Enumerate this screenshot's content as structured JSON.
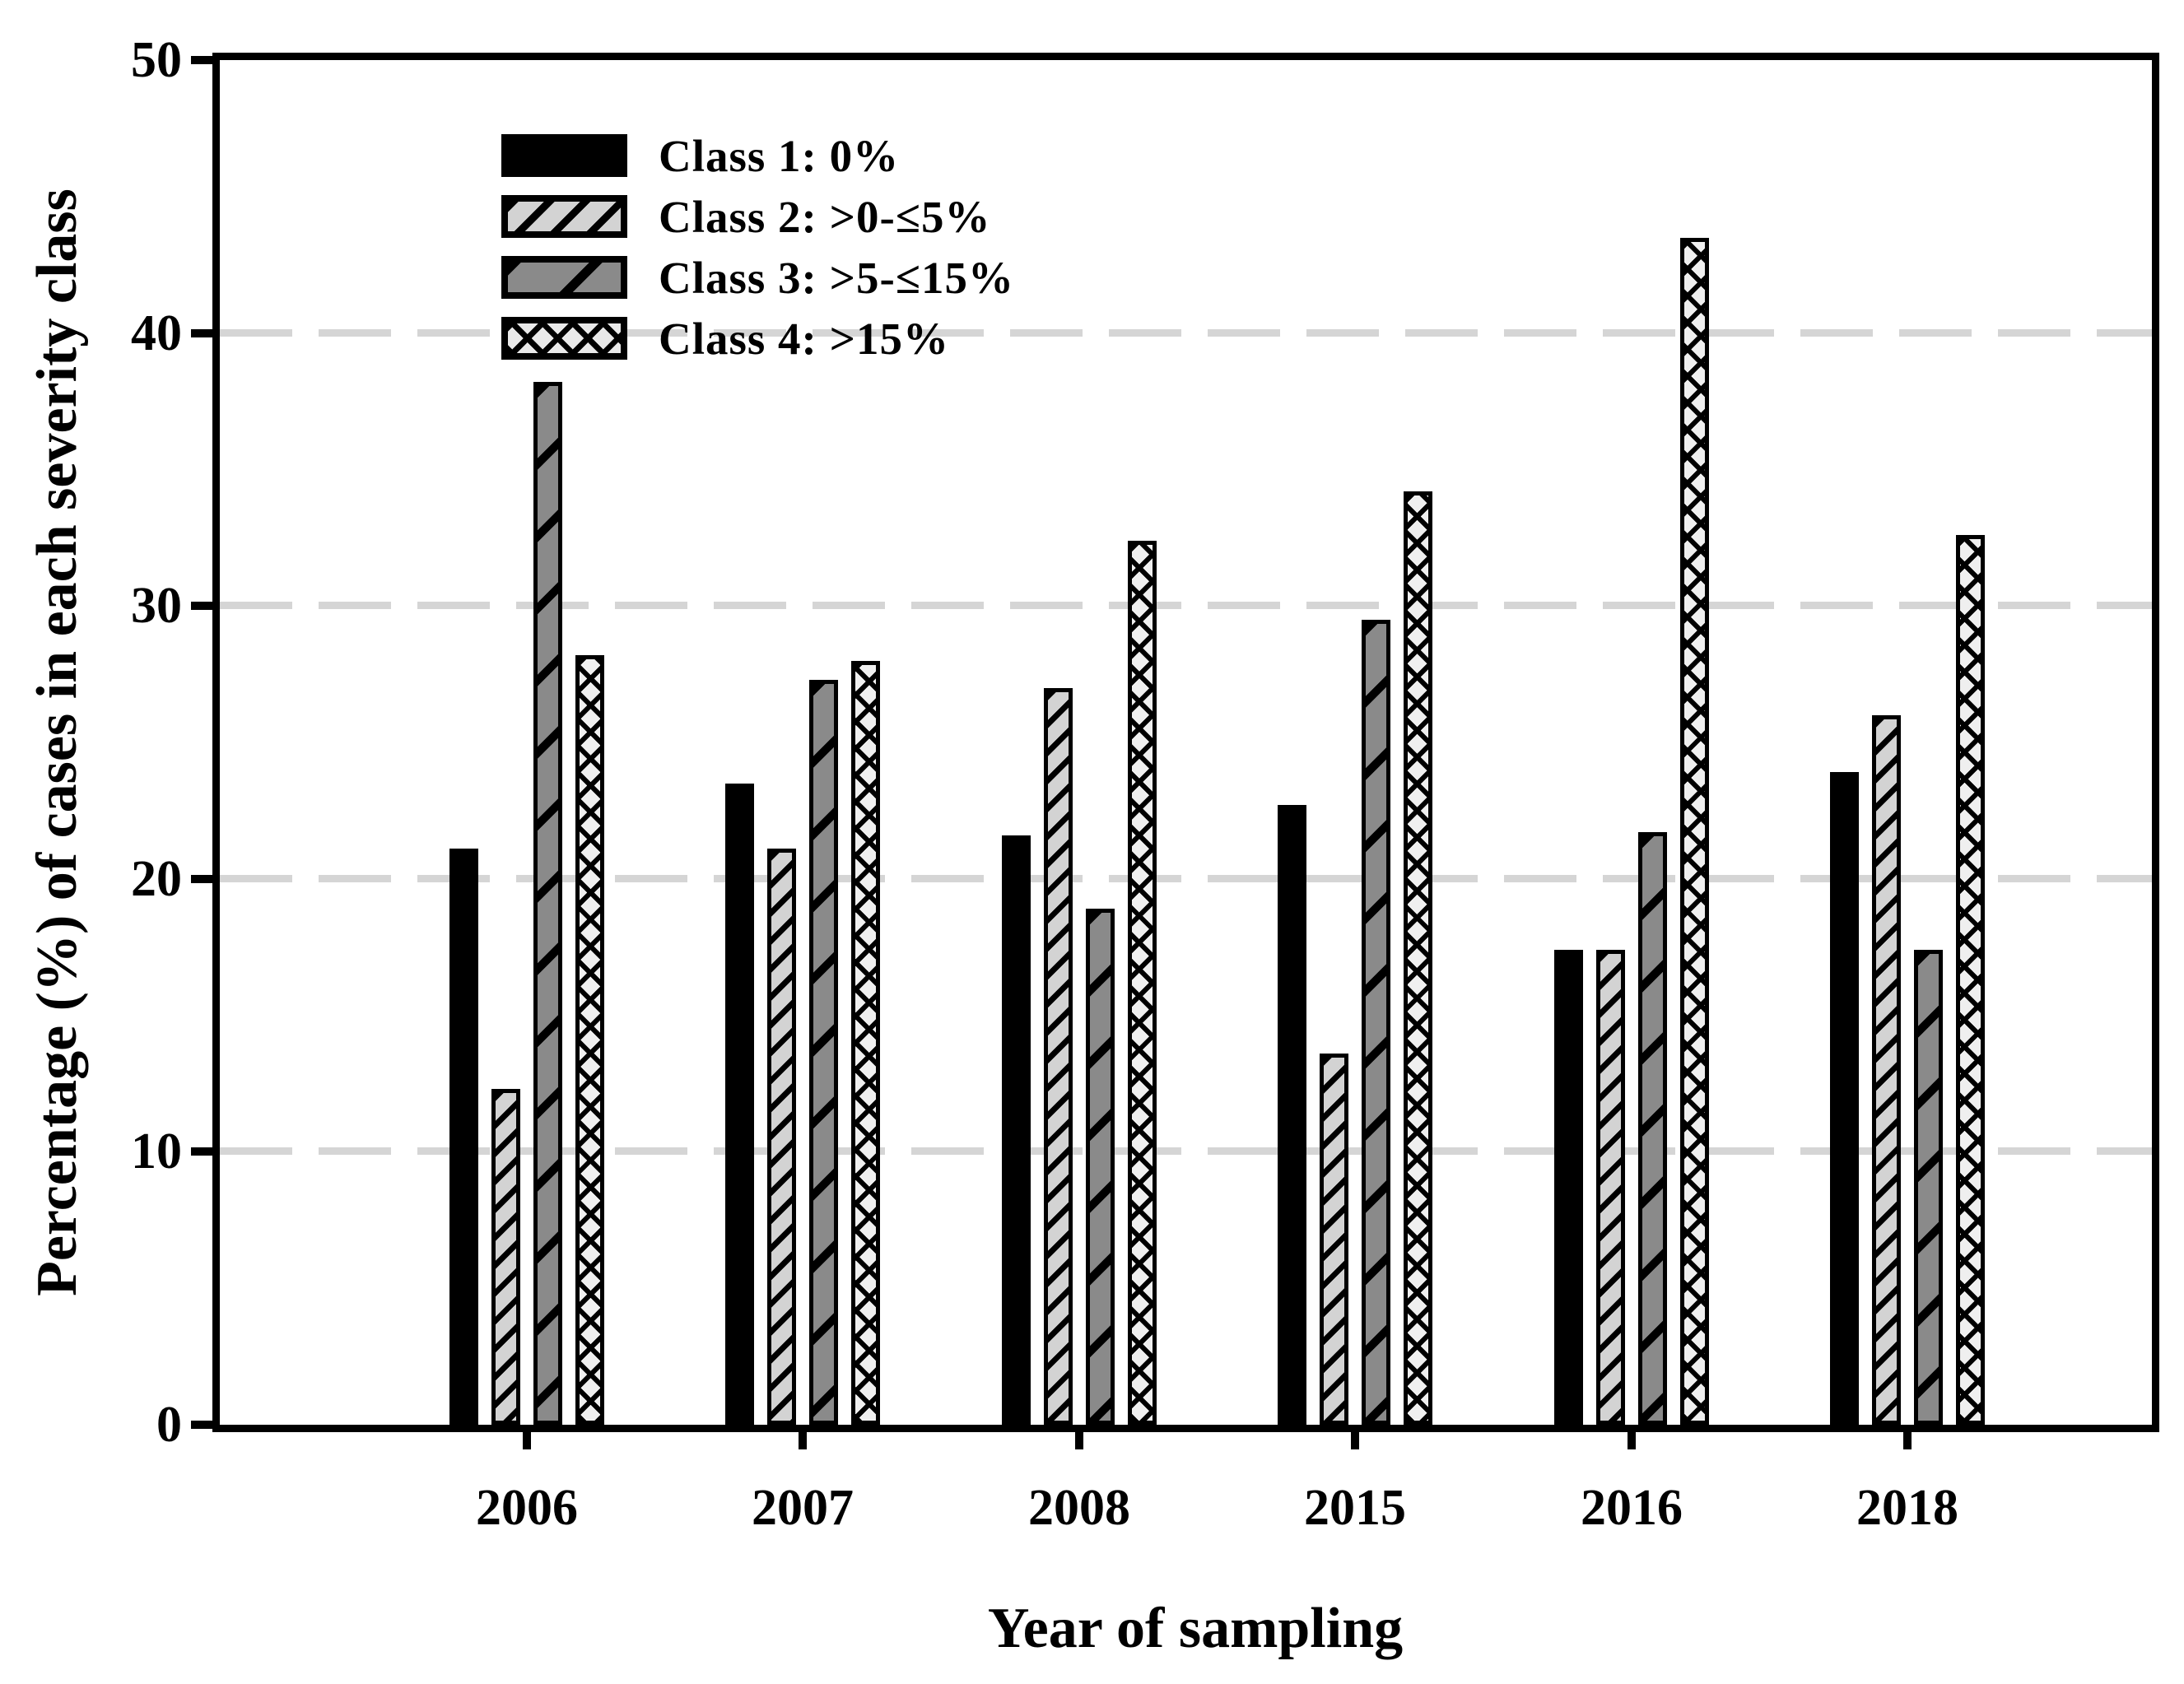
{
  "chart_data": {
    "type": "bar",
    "title": "",
    "xlabel": "Year of sampling",
    "ylabel": "Percentage (%) of cases in each severity class",
    "categories": [
      "2006",
      "2007",
      "2008",
      "2015",
      "2016",
      "2018"
    ],
    "series": [
      {
        "name": "Class 1: 0%",
        "pattern": "solid-black",
        "color": "#000000",
        "values": [
          21.1,
          23.5,
          21.6,
          22.7,
          17.4,
          23.9
        ]
      },
      {
        "name": "Class 2: >0-≤5%",
        "pattern": "diagonal-hatch-light",
        "color": "#d3d3d3",
        "values": [
          12.3,
          21.1,
          27.0,
          13.6,
          17.4,
          26.0
        ]
      },
      {
        "name": "Class 3: >5-≤15%",
        "pattern": "diagonal-sparse-gray",
        "color": "#8a8a8a",
        "values": [
          38.2,
          27.3,
          18.9,
          29.5,
          21.7,
          17.4
        ]
      },
      {
        "name": "Class 4: >15%",
        "pattern": "crosshatch",
        "color": "#efefef",
        "values": [
          28.2,
          28.0,
          32.4,
          34.2,
          43.5,
          32.6
        ]
      }
    ],
    "ylim": [
      0,
      50
    ],
    "yticks": [
      0,
      10,
      20,
      30,
      40,
      50
    ],
    "grid": {
      "show": true,
      "values": [
        10,
        20,
        30,
        40
      ],
      "style": "dashed",
      "color": "#d5d5d5"
    },
    "legend_position": "top-left",
    "frame": "full-box",
    "axis_color": "#000000",
    "background": "#ffffff"
  }
}
